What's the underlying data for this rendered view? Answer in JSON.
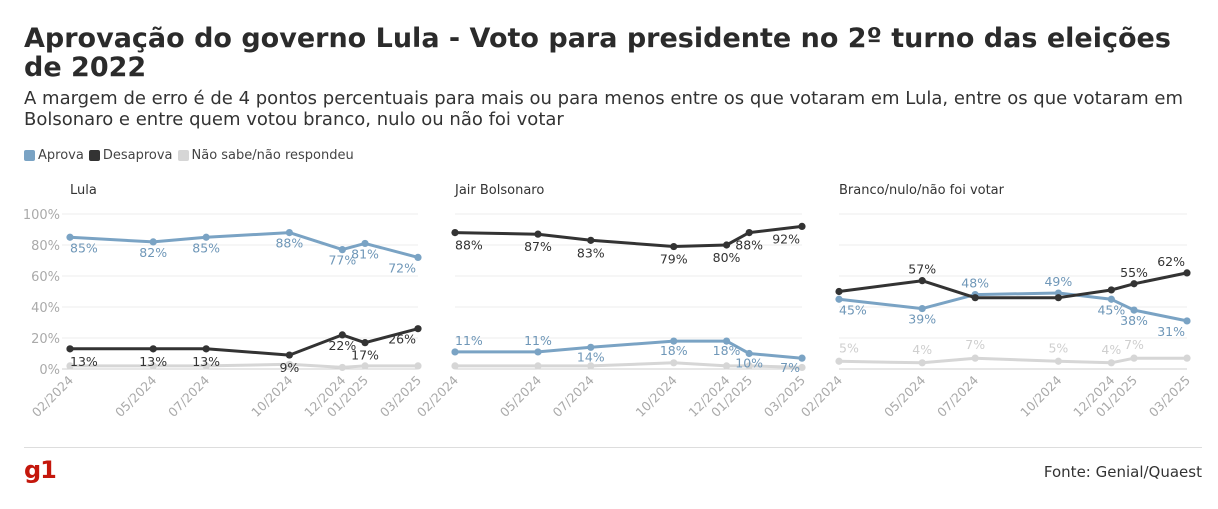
{
  "title": "Aprovação do governo Lula - Voto para presidente no 2º turno das eleições de 2022",
  "subtitle": "A margem de erro é de 4 pontos percentuais para mais ou para menos entre os que votaram em Lula, entre os que votaram em Bolsonaro e entre quem votou branco, nulo ou não foi votar",
  "legend": [
    {
      "label": "Aprova",
      "color": "#7aa3c4"
    },
    {
      "label": "Desaprova",
      "color": "#333333"
    },
    {
      "label": "Não sabe/não respondeu",
      "color": "#d6d6d6"
    }
  ],
  "source": "Fonte: Genial/Quaest",
  "logo": "g1",
  "chart_data": [
    {
      "type": "line",
      "title": "Lula",
      "x": [
        "02/2024",
        "05/2024",
        "07/2024",
        "10/2024",
        "12/2024",
        "01/2025",
        "03/2025"
      ],
      "ylim": [
        0,
        100
      ],
      "yticks": [
        "0%",
        "20%",
        "40%",
        "60%",
        "80%",
        "100%"
      ],
      "grid": true,
      "series": [
        {
          "name": "Aprova",
          "values": [
            85,
            82,
            85,
            88,
            77,
            81,
            72
          ],
          "labels": [
            "85%",
            "82%",
            "85%",
            "88%",
            "77%",
            "81%",
            "72%"
          ]
        },
        {
          "name": "Desaprova",
          "values": [
            13,
            13,
            13,
            9,
            22,
            17,
            26
          ],
          "labels": [
            "13%",
            "13%",
            "13%",
            "9%",
            "22%",
            "17%",
            "26%"
          ]
        },
        {
          "name": "Não sabe/não respondeu",
          "values": [
            2,
            2,
            2,
            3,
            1,
            2,
            2
          ],
          "labels": []
        }
      ]
    },
    {
      "type": "line",
      "title": "Jair Bolsonaro",
      "x": [
        "02/2024",
        "05/2024",
        "07/2024",
        "10/2024",
        "12/2024",
        "01/2025",
        "03/2025"
      ],
      "ylim": [
        0,
        100
      ],
      "grid": true,
      "series": [
        {
          "name": "Aprova",
          "values": [
            11,
            11,
            14,
            18,
            18,
            10,
            7
          ],
          "labels": [
            "11%",
            "11%",
            "14%",
            "18%",
            "18%",
            "10%",
            "7%"
          ]
        },
        {
          "name": "Desaprova",
          "values": [
            88,
            87,
            83,
            79,
            80,
            88,
            92
          ],
          "labels": [
            "88%",
            "87%",
            "83%",
            "79%",
            "80%",
            "88%",
            "92%"
          ]
        },
        {
          "name": "Não sabe/não respondeu",
          "values": [
            2,
            2,
            2,
            4,
            2,
            2,
            1
          ],
          "labels": []
        }
      ]
    },
    {
      "type": "line",
      "title": "Branco/nulo/não foi votar",
      "x": [
        "02/2024",
        "05/2024",
        "07/2024",
        "10/2024",
        "12/2024",
        "01/2025",
        "03/2025"
      ],
      "ylim": [
        0,
        100
      ],
      "grid": true,
      "series": [
        {
          "name": "Aprova",
          "values": [
            45,
            39,
            48,
            49,
            45,
            38,
            31
          ],
          "labels": [
            "45%",
            "39%",
            "48%",
            "49%",
            "45%",
            "38%",
            "31%"
          ]
        },
        {
          "name": "Desaprova",
          "values": [
            50,
            57,
            46,
            46,
            51,
            55,
            62
          ],
          "labels": [
            "",
            "57%",
            "",
            "",
            "",
            "55%",
            "62%"
          ]
        },
        {
          "name": "Não sabe/não respondeu",
          "values": [
            5,
            4,
            7,
            5,
            4,
            7,
            7
          ],
          "labels": [
            "5%",
            "4%",
            "7%",
            "5%",
            "4%",
            "7%",
            ""
          ]
        }
      ]
    }
  ]
}
